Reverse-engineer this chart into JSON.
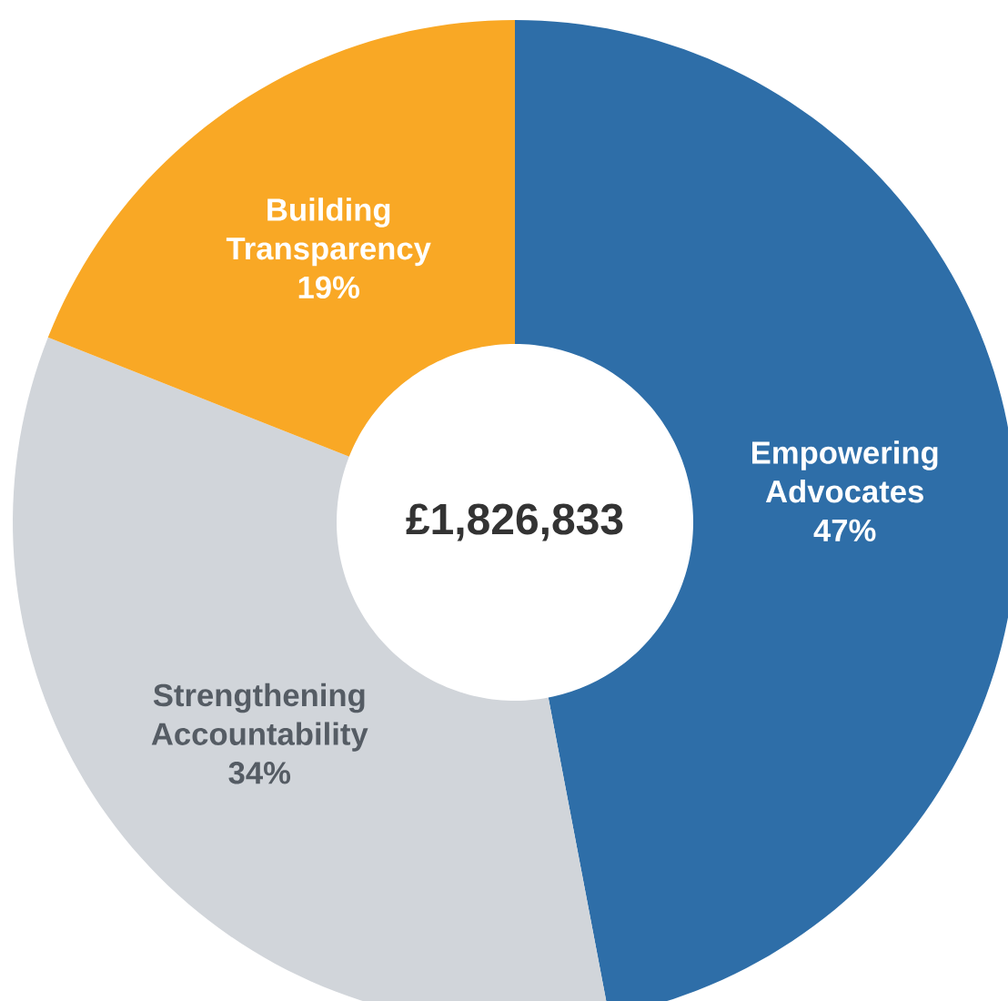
{
  "chart_data": {
    "type": "donut",
    "categories": [
      "Empowering Advocates",
      "Strengthening Accountability",
      "Building Transparency"
    ],
    "values": [
      47,
      34,
      19
    ],
    "value_labels": [
      "47%",
      "34%",
      "19%"
    ],
    "colors": [
      "#2e6ea8",
      "#d1d5da",
      "#f9a825"
    ],
    "annotations": [
      "£1,826,833"
    ]
  }
}
